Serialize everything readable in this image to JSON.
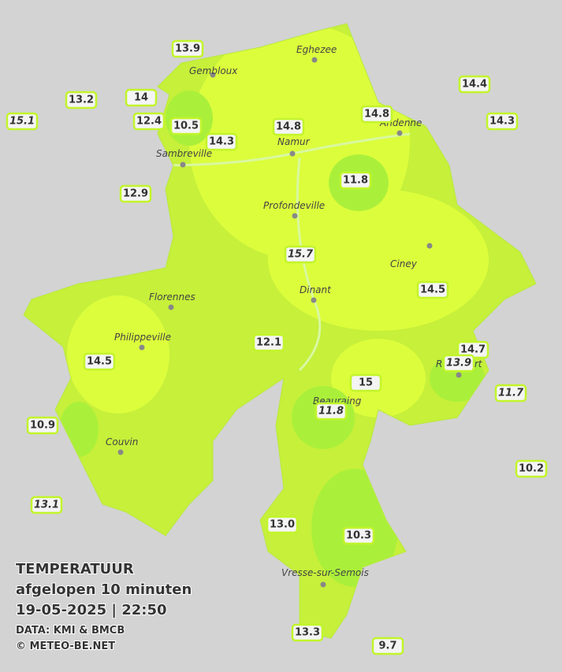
{
  "map": {
    "cities": [
      "Eghezee",
      "Gembloux",
      "Andenne",
      "Namur",
      "Sambreville",
      "Profondeville",
      "Ciney",
      "Dinant",
      "Florennes",
      "Philippeville",
      "Beauraing",
      "Rochefort",
      "Couvin",
      "Vresse-sur-Semois"
    ],
    "stations": [
      {
        "value": 13.9
      },
      {
        "value": 13.2
      },
      {
        "value": 14.0
      },
      {
        "value": 15.1,
        "italic": true
      },
      {
        "value": 12.4
      },
      {
        "value": 10.5
      },
      {
        "value": 14.3
      },
      {
        "value": 14.8
      },
      {
        "value": 14.8
      },
      {
        "value": 14.4
      },
      {
        "value": 14.3
      },
      {
        "value": 12.9
      },
      {
        "value": 11.8
      },
      {
        "value": 15.7,
        "italic": true
      },
      {
        "value": 14.5
      },
      {
        "value": 12.1
      },
      {
        "value": 14.5
      },
      {
        "value": 14.7
      },
      {
        "value": 13.9,
        "italic": true
      },
      {
        "value": 15.0
      },
      {
        "value": 11.7,
        "italic": true
      },
      {
        "value": 11.8,
        "italic": true
      },
      {
        "value": 10.9
      },
      {
        "value": 10.2
      },
      {
        "value": 13.1,
        "italic": true
      },
      {
        "value": 13,
        "label": "13.0"
      },
      {
        "value": 10.3
      },
      {
        "value": 13.3
      },
      {
        "value": 9.7
      }
    ],
    "legend": {
      "title": "TEMPERATUUR",
      "subtitle": "afgelopen 10 minuten",
      "datetime": "19-05-2025  |  22:50",
      "source": "DATA: KMI & BMCB",
      "copyright": "© METEO-BE.NET"
    }
  }
}
